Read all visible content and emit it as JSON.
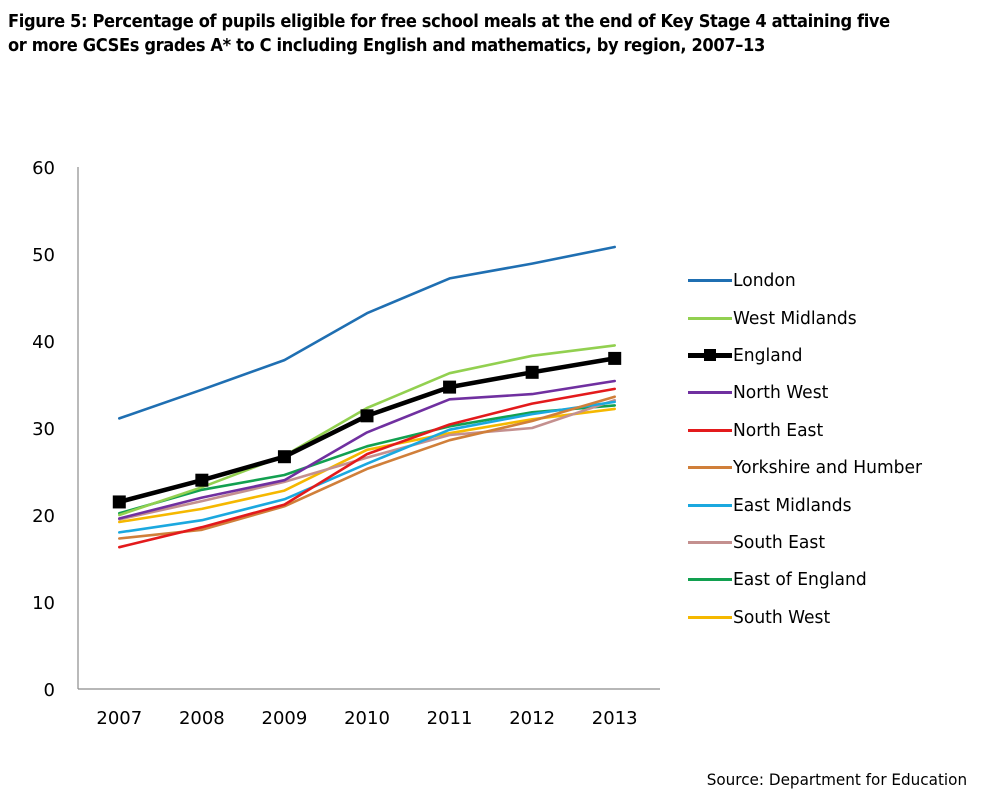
{
  "figure": {
    "title": "Figure 5: Percentage of pupils eligible for free school meals at the end of Key Stage 4 attaining five or more GCSEs grades A* to C including English and mathematics, by region, 2007–13",
    "source": "Source: Department for Education"
  },
  "chart_data": {
    "type": "line",
    "title": "Figure 5: Percentage of pupils eligible for free school meals at the end of Key Stage 4 attaining five or more GCSEs grades A* to C including English and mathematics, by region, 2007–13",
    "xlabel": "",
    "ylabel": "",
    "categories": [
      "2007",
      "2008",
      "2009",
      "2010",
      "2011",
      "2012",
      "2013"
    ],
    "ylim": [
      0,
      60
    ],
    "yticks": [
      "0",
      "10",
      "20",
      "30",
      "40",
      "50",
      "60"
    ],
    "grid": false,
    "legend_position": "right",
    "series": [
      {
        "name": "London",
        "color": "#1F6FB2",
        "marker": "none",
        "values": [
          31.1,
          34.4,
          37.8,
          43.2,
          47.2,
          48.9,
          50.8
        ]
      },
      {
        "name": "West Midlands",
        "color": "#92D050",
        "marker": "none",
        "values": [
          20.0,
          23.2,
          26.8,
          32.3,
          36.3,
          38.3,
          39.5
        ]
      },
      {
        "name": "England",
        "color": "#000000",
        "marker": "square",
        "emphasis": true,
        "values": [
          21.5,
          24.0,
          26.7,
          31.4,
          34.7,
          36.4,
          38.0
        ]
      },
      {
        "name": "North West",
        "color": "#7030A0",
        "marker": "none",
        "values": [
          19.6,
          22.0,
          24.0,
          29.5,
          33.3,
          33.9,
          35.4
        ]
      },
      {
        "name": "North East",
        "color": "#E31A1C",
        "marker": "none",
        "values": [
          16.3,
          18.6,
          21.2,
          27.0,
          30.4,
          32.8,
          34.5
        ]
      },
      {
        "name": "Yorkshire and Humber",
        "color": "#D07F3A",
        "marker": "none",
        "values": [
          17.3,
          18.3,
          21.0,
          25.3,
          28.6,
          30.8,
          33.6
        ]
      },
      {
        "name": "East Midlands",
        "color": "#1BA8DF",
        "marker": "none",
        "values": [
          18.0,
          19.4,
          21.8,
          25.9,
          29.8,
          31.6,
          33.0
        ]
      },
      {
        "name": "South East",
        "color": "#C4908F",
        "marker": "none",
        "values": [
          19.5,
          21.6,
          23.8,
          26.6,
          29.2,
          30.0,
          33.2
        ]
      },
      {
        "name": "East of England",
        "color": "#12A050",
        "marker": "none",
        "values": [
          20.2,
          22.9,
          24.6,
          27.9,
          30.2,
          31.8,
          32.6
        ]
      },
      {
        "name": "South West",
        "color": "#F5B800",
        "marker": "none",
        "values": [
          19.2,
          20.7,
          22.8,
          27.5,
          29.4,
          31.0,
          32.2
        ]
      }
    ]
  }
}
